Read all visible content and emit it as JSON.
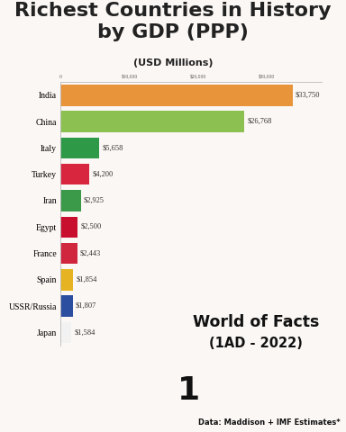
{
  "chart_data": {
    "type": "bar",
    "orientation": "horizontal",
    "title": "Richest Countries in History by GDP (PPP)",
    "subtitle": "(USD Millions)",
    "categories": [
      "India",
      "China",
      "Italy",
      "Turkey",
      "Iran",
      "Egypt",
      "France",
      "Spain",
      "USSR/Russia",
      "Japan"
    ],
    "values": [
      33750,
      26768,
      5658,
      4200,
      2925,
      2500,
      2443,
      1854,
      1807,
      1584
    ],
    "value_labels": [
      "$33,750",
      "$26,768",
      "$5,658",
      "$4,200",
      "$2,925",
      "$2,500",
      "$2,443",
      "$1,854",
      "$1,807",
      "$1,584"
    ],
    "colors": [
      "#e8943a",
      "#8cc152",
      "#2e9a48",
      "#d7263d",
      "#3a9a4a",
      "#c8102e",
      "#d0263e",
      "#e6b422",
      "#2b4ea0",
      "#f2f2f2"
    ],
    "data_labels": true,
    "xlim": [
      0,
      38000
    ],
    "xticks": [
      0,
      {
        "value": 10000,
        "label": "$10,000"
      },
      {
        "value": 20000,
        "label": "$20,000"
      },
      {
        "value": 30000,
        "label": "$30,000"
      }
    ],
    "grid": false,
    "annotations": [
      "World of Facts",
      "(1AD - 2022)",
      "1",
      "Data: Maddison + IMF Estimates*"
    ]
  }
}
